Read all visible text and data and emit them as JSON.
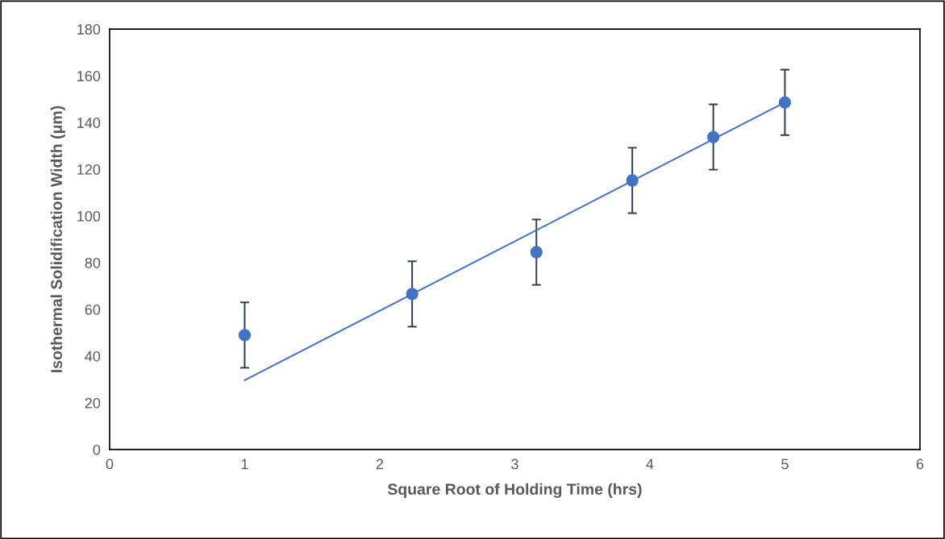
{
  "chart_data": {
    "type": "scatter",
    "xlabel": "Square Root of Holding Time (hrs)",
    "ylabel": "Isothermal Solidification Width (μm)",
    "xlim": [
      0,
      6
    ],
    "xticks": [
      0,
      1,
      2,
      3,
      4,
      5,
      6
    ],
    "ylim": [
      0,
      180
    ],
    "yticks": [
      0,
      20,
      40,
      60,
      80,
      100,
      120,
      140,
      160,
      180
    ],
    "grid": false,
    "legend": false,
    "marker": "circle",
    "series": [
      {
        "color": "#4472c4",
        "x": [
          1,
          2.24,
          3.16,
          3.87,
          4.47,
          5
        ],
        "values": [
          49,
          66.6,
          84.5,
          115.2,
          133.8,
          148.6
        ],
        "errors": [
          14,
          14,
          14,
          14,
          14,
          14
        ]
      },
      {
        "type": "line",
        "color": "#4472c4",
        "x": [
          1,
          5
        ],
        "values": [
          29.7,
          148.6
        ],
        "marker": "none"
      }
    ]
  }
}
